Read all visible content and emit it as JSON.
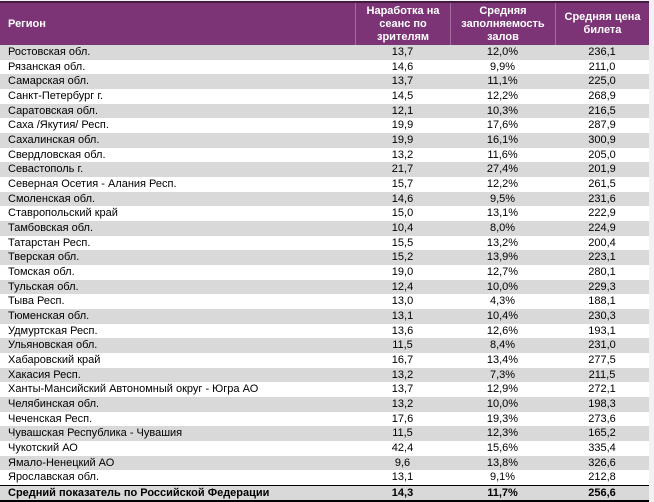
{
  "table": {
    "columns": [
      {
        "label": "Регион"
      },
      {
        "label": "Наработка на\nсеанс по\nзрителям"
      },
      {
        "label": "Средняя\nзаполняемость\nзалов"
      },
      {
        "label": "Средняя цена\nбилета"
      }
    ],
    "rows": [
      {
        "region": "Ростовская обл.",
        "sessions": "13,7",
        "occupancy": "12,0%",
        "price": "236,1"
      },
      {
        "region": "Рязанская обл.",
        "sessions": "14,6",
        "occupancy": "9,9%",
        "price": "211,0"
      },
      {
        "region": "Самарская обл.",
        "sessions": "13,7",
        "occupancy": "11,1%",
        "price": "225,0"
      },
      {
        "region": "Санкт-Петербург г.",
        "sessions": "14,5",
        "occupancy": "12,2%",
        "price": "268,9"
      },
      {
        "region": "Саратовская обл.",
        "sessions": "12,1",
        "occupancy": "10,3%",
        "price": "216,5"
      },
      {
        "region": "Саха /Якутия/ Респ.",
        "sessions": "19,9",
        "occupancy": "17,6%",
        "price": "287,9"
      },
      {
        "region": "Сахалинская обл.",
        "sessions": "19,9",
        "occupancy": "16,1%",
        "price": "300,9"
      },
      {
        "region": "Свердловская обл.",
        "sessions": "13,2",
        "occupancy": "11,6%",
        "price": "205,0"
      },
      {
        "region": "Севастополь г.",
        "sessions": "21,7",
        "occupancy": "27,4%",
        "price": "201,9"
      },
      {
        "region": "Северная Осетия - Алания Респ.",
        "sessions": "15,7",
        "occupancy": "12,2%",
        "price": "261,5"
      },
      {
        "region": "Смоленская обл.",
        "sessions": "14,6",
        "occupancy": "9,5%",
        "price": "231,6"
      },
      {
        "region": "Ставропольский край",
        "sessions": "15,0",
        "occupancy": "13,1%",
        "price": "222,9"
      },
      {
        "region": "Тамбовская обл.",
        "sessions": "10,4",
        "occupancy": "8,0%",
        "price": "224,9"
      },
      {
        "region": "Татарстан Респ.",
        "sessions": "15,5",
        "occupancy": "13,2%",
        "price": "200,4"
      },
      {
        "region": "Тверская обл.",
        "sessions": "15,2",
        "occupancy": "13,9%",
        "price": "223,1"
      },
      {
        "region": "Томская обл.",
        "sessions": "19,0",
        "occupancy": "12,7%",
        "price": "280,1"
      },
      {
        "region": "Тульская обл.",
        "sessions": "12,4",
        "occupancy": "10,0%",
        "price": "229,3"
      },
      {
        "region": "Тыва Респ.",
        "sessions": "13,0",
        "occupancy": "4,3%",
        "price": "188,1"
      },
      {
        "region": "Тюменская обл.",
        "sessions": "13,1",
        "occupancy": "10,4%",
        "price": "230,3"
      },
      {
        "region": "Удмуртская Респ.",
        "sessions": "13,6",
        "occupancy": "12,6%",
        "price": "193,1"
      },
      {
        "region": "Ульяновская обл.",
        "sessions": "11,5",
        "occupancy": "8,4%",
        "price": "231,0"
      },
      {
        "region": "Хабаровский край",
        "sessions": "16,7",
        "occupancy": "13,4%",
        "price": "277,5"
      },
      {
        "region": "Хакасия Респ.",
        "sessions": "13,2",
        "occupancy": "7,3%",
        "price": "211,5"
      },
      {
        "region": "Ханты-Мансийский Автономный округ - Югра АО",
        "sessions": "13,7",
        "occupancy": "12,9%",
        "price": "272,1"
      },
      {
        "region": "Челябинская обл.",
        "sessions": "13,2",
        "occupancy": "10,0%",
        "price": "198,3"
      },
      {
        "region": "Чеченская Респ.",
        "sessions": "17,6",
        "occupancy": "19,3%",
        "price": "273,6"
      },
      {
        "region": "Чувашская Республика - Чувашия",
        "sessions": "11,5",
        "occupancy": "12,3%",
        "price": "165,2"
      },
      {
        "region": "Чукотский АО",
        "sessions": "42,4",
        "occupancy": "15,6%",
        "price": "335,4"
      },
      {
        "region": "Ямало-Ненецкий АО",
        "sessions": "9,6",
        "occupancy": "13,8%",
        "price": "326,6"
      },
      {
        "region": "Ярославская обл.",
        "sessions": "13,1",
        "occupancy": "9,1%",
        "price": "212,8"
      }
    ],
    "summary": {
      "region": "Средний показатель по Российской Федерации",
      "sessions": "14,3",
      "occupancy": "11,7%",
      "price": "256,6"
    }
  },
  "colors": {
    "header_bg": "#7c3477",
    "header_text": "#ffffff",
    "stripe": "#d9d9d9",
    "top_border": "#431a40",
    "summary_bg": "#d9d9d9"
  }
}
